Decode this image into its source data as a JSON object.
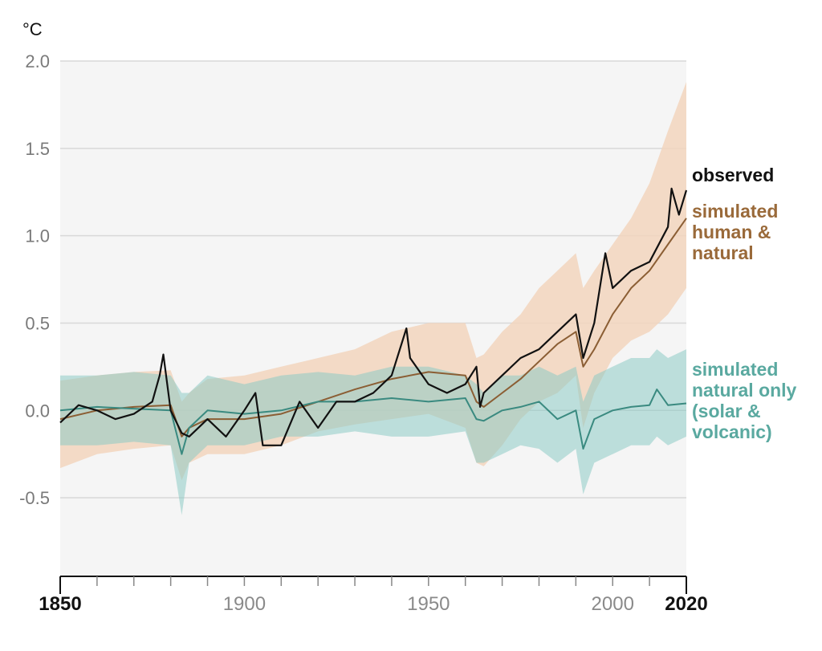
{
  "chart_data": {
    "type": "line",
    "title": "",
    "xlabel": "",
    "ylabel": "°C",
    "xlim": [
      1850,
      2020
    ],
    "ylim": [
      -0.95,
      2.0
    ],
    "y_ticks": [
      2.0,
      1.5,
      1.0,
      0.5,
      0.0,
      -0.5
    ],
    "y_tick_labels": [
      "2.0",
      "1.5",
      "1.0",
      "0.5",
      "0.0",
      "-0.5"
    ],
    "x_ticks": [
      1850,
      1900,
      1950,
      2000,
      2020
    ],
    "x_tick_labels": [
      "1850",
      "1900",
      "1950",
      "2000",
      "2020"
    ],
    "grid": "horizontal",
    "legend_position": "right",
    "colors": {
      "observed": "#111111",
      "human_natural": "#8b5e34",
      "human_natural_band": "#f2d5bd",
      "natural_only": "#3a8a80",
      "natural_only_band": "#8ccbc4",
      "plot_background": "#f5f5f5",
      "grid": "#d8d8d8"
    },
    "series": [
      {
        "name": "observed",
        "x": [
          1850,
          1855,
          1860,
          1865,
          1870,
          1875,
          1877,
          1878,
          1880,
          1883,
          1885,
          1890,
          1895,
          1900,
          1903,
          1905,
          1910,
          1915,
          1920,
          1925,
          1930,
          1935,
          1940,
          1944,
          1945,
          1950,
          1955,
          1960,
          1963,
          1964,
          1965,
          1970,
          1975,
          1980,
          1985,
          1990,
          1992,
          1995,
          1998,
          2000,
          2005,
          2010,
          2015,
          2016,
          2018,
          2020
        ],
        "y": [
          -0.07,
          0.03,
          0.0,
          -0.05,
          -0.02,
          0.05,
          0.2,
          0.32,
          0.0,
          -0.13,
          -0.15,
          -0.05,
          -0.15,
          0.0,
          0.1,
          -0.2,
          -0.2,
          0.05,
          -0.1,
          0.05,
          0.05,
          0.1,
          0.2,
          0.47,
          0.3,
          0.15,
          0.1,
          0.15,
          0.25,
          0.02,
          0.1,
          0.2,
          0.3,
          0.35,
          0.45,
          0.55,
          0.3,
          0.5,
          0.9,
          0.7,
          0.8,
          0.85,
          1.05,
          1.27,
          1.12,
          1.26
        ]
      },
      {
        "name": "simulated human & natural",
        "x": [
          1850,
          1860,
          1870,
          1880,
          1883,
          1885,
          1890,
          1900,
          1910,
          1920,
          1930,
          1940,
          1950,
          1960,
          1963,
          1965,
          1970,
          1975,
          1980,
          1985,
          1990,
          1992,
          1995,
          2000,
          2005,
          2010,
          2015,
          2020
        ],
        "y": [
          -0.05,
          0.0,
          0.02,
          0.03,
          -0.15,
          -0.1,
          -0.05,
          -0.05,
          -0.02,
          0.05,
          0.12,
          0.18,
          0.22,
          0.2,
          0.05,
          0.02,
          0.1,
          0.18,
          0.28,
          0.38,
          0.45,
          0.25,
          0.35,
          0.55,
          0.7,
          0.8,
          0.95,
          1.1
        ]
      },
      {
        "name": "simulated natural only (solar & volcanic)",
        "x": [
          1850,
          1860,
          1870,
          1880,
          1883,
          1885,
          1890,
          1900,
          1910,
          1920,
          1930,
          1940,
          1950,
          1960,
          1963,
          1965,
          1970,
          1975,
          1980,
          1985,
          1990,
          1992,
          1995,
          2000,
          2005,
          2010,
          2012,
          2015,
          2020
        ],
        "y": [
          0.0,
          0.02,
          0.01,
          0.0,
          -0.25,
          -0.1,
          0.0,
          -0.02,
          0.0,
          0.05,
          0.05,
          0.07,
          0.05,
          0.07,
          -0.05,
          -0.06,
          0.0,
          0.02,
          0.05,
          -0.05,
          0.0,
          -0.22,
          -0.05,
          0.0,
          0.02,
          0.03,
          0.12,
          0.03,
          0.04
        ]
      }
    ],
    "bands": [
      {
        "name": "simulated human & natural range",
        "x": [
          1850,
          1860,
          1870,
          1880,
          1883,
          1885,
          1890,
          1900,
          1910,
          1920,
          1930,
          1940,
          1950,
          1960,
          1963,
          1965,
          1970,
          1975,
          1980,
          1985,
          1990,
          1992,
          1995,
          2000,
          2005,
          2010,
          2015,
          2020
        ],
        "lower": [
          -0.33,
          -0.25,
          -0.22,
          -0.2,
          -0.4,
          -0.3,
          -0.25,
          -0.25,
          -0.2,
          -0.12,
          -0.08,
          -0.05,
          -0.02,
          -0.1,
          -0.3,
          -0.32,
          -0.2,
          -0.05,
          0.05,
          0.1,
          0.2,
          -0.1,
          0.1,
          0.3,
          0.4,
          0.45,
          0.55,
          0.7
        ],
        "upper": [
          0.17,
          0.2,
          0.22,
          0.23,
          0.05,
          0.1,
          0.18,
          0.2,
          0.25,
          0.3,
          0.35,
          0.45,
          0.5,
          0.5,
          0.3,
          0.32,
          0.45,
          0.55,
          0.7,
          0.8,
          0.9,
          0.7,
          0.8,
          0.95,
          1.1,
          1.3,
          1.6,
          1.88
        ]
      },
      {
        "name": "simulated natural only range",
        "x": [
          1850,
          1860,
          1870,
          1880,
          1883,
          1885,
          1890,
          1900,
          1910,
          1920,
          1930,
          1940,
          1950,
          1960,
          1963,
          1965,
          1970,
          1975,
          1980,
          1985,
          1990,
          1992,
          1995,
          2000,
          2005,
          2010,
          2012,
          2015,
          2020
        ],
        "lower": [
          -0.2,
          -0.2,
          -0.18,
          -0.2,
          -0.6,
          -0.3,
          -0.2,
          -0.2,
          -0.15,
          -0.15,
          -0.12,
          -0.15,
          -0.15,
          -0.12,
          -0.3,
          -0.3,
          -0.25,
          -0.2,
          -0.22,
          -0.3,
          -0.22,
          -0.48,
          -0.3,
          -0.25,
          -0.2,
          -0.2,
          -0.15,
          -0.2,
          -0.15
        ],
        "upper": [
          0.2,
          0.2,
          0.22,
          0.2,
          0.1,
          0.1,
          0.2,
          0.15,
          0.2,
          0.22,
          0.2,
          0.25,
          0.25,
          0.2,
          0.15,
          0.1,
          0.2,
          0.2,
          0.25,
          0.2,
          0.25,
          0.05,
          0.2,
          0.25,
          0.3,
          0.3,
          0.35,
          0.3,
          0.35
        ]
      }
    ],
    "legend": [
      {
        "key": "observed",
        "lines": [
          "observed"
        ]
      },
      {
        "key": "human_natural",
        "lines": [
          "simulated",
          "human &",
          "natural"
        ]
      },
      {
        "key": "natural_only",
        "lines": [
          "simulated",
          "natural only",
          "(solar &",
          "volcanic)"
        ]
      }
    ]
  }
}
